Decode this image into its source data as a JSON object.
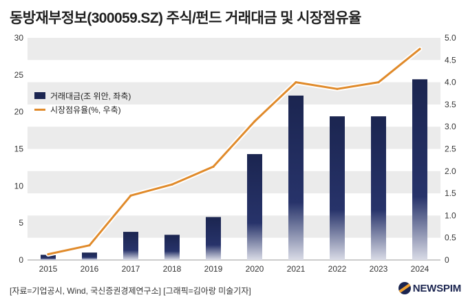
{
  "header": {
    "title": "동방재부정보(300059.SZ) 주식/펀드 거래대금 및 시장점유율"
  },
  "chart_data": {
    "type": "bar+line",
    "categories": [
      "2015",
      "2016",
      "2017",
      "2018",
      "2019",
      "2020",
      "2021",
      "2022",
      "2023",
      "2024"
    ],
    "series": [
      {
        "name": "거래대금(조 위안, 좌축)",
        "type": "bar",
        "axis": "left",
        "values": [
          0.7,
          1.0,
          3.8,
          3.4,
          5.8,
          14.3,
          22.2,
          19.4,
          19.4,
          24.4
        ]
      },
      {
        "name": "시장점유율(%, 우축)",
        "type": "line",
        "axis": "right",
        "values": [
          0.13,
          0.33,
          1.45,
          1.7,
          2.1,
          3.12,
          4.0,
          3.85,
          4.0,
          4.75
        ]
      }
    ],
    "y_left": {
      "min": 0,
      "max": 30,
      "ticks": [
        "0",
        "5",
        "10",
        "15",
        "20",
        "25",
        "30"
      ]
    },
    "y_right": {
      "min": 0,
      "max": 5,
      "ticks": [
        "0",
        "0.5",
        "1.0",
        "1.5",
        "2.0",
        "2.5",
        "3.0",
        "3.5",
        "4.0",
        "4.5",
        "5.0"
      ]
    },
    "legend": [
      "거래대금(조 위안, 좌축)",
      "시장점유율(%, 우축)"
    ],
    "colors": {
      "bar": "#1b2550",
      "line": "#e08a2a",
      "band": "#ebebeb"
    }
  },
  "footer": {
    "source": "[자료=기업공시, Wind, 국신증권경제연구소] [그래픽=김아랑 미술기자]",
    "logo": "NEWSPIM"
  }
}
